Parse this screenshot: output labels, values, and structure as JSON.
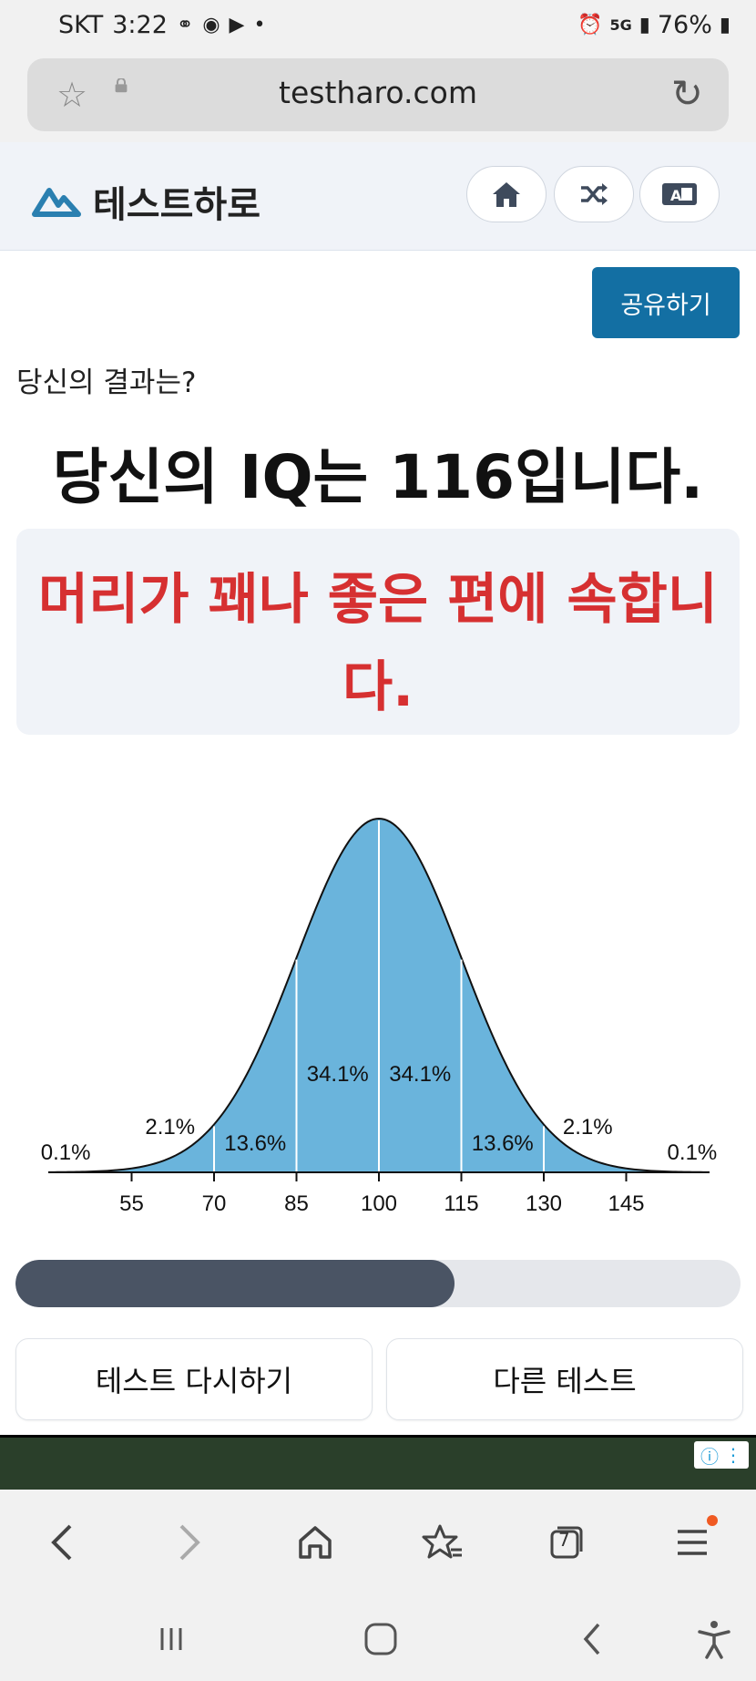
{
  "status_bar": {
    "carrier": "SKT",
    "time": "3:22",
    "network": "5G",
    "battery": "76%"
  },
  "browser": {
    "url": "testharo.com",
    "tabs_count": "7"
  },
  "site": {
    "brand": "테스트하로",
    "header_icons": [
      "home-icon",
      "shuffle-icon",
      "language-icon"
    ],
    "share_label": "공유하기"
  },
  "result": {
    "label": "당신의 결과는?",
    "title": "당신의 IQ는 116입니다.",
    "description": "머리가 꽤나 좋은 편에 속합니다."
  },
  "chart_data": {
    "type": "area",
    "x_ticks": [
      55,
      70,
      85,
      100,
      115,
      130,
      145
    ],
    "mean": 100,
    "sd": 15,
    "region_labels": [
      {
        "x": 43,
        "text": "0.1%"
      },
      {
        "x": 62,
        "text": "2.1%"
      },
      {
        "x": 77.5,
        "text": "13.6%"
      },
      {
        "x": 92.5,
        "text": "34.1%"
      },
      {
        "x": 107.5,
        "text": "34.1%"
      },
      {
        "x": 122.5,
        "text": "13.6%"
      },
      {
        "x": 138,
        "text": "2.1%"
      },
      {
        "x": 157,
        "text": "0.1%"
      }
    ],
    "fill_color": "#6ab4dc"
  },
  "progress": {
    "value_fraction": 0.605
  },
  "actions": {
    "retry_label": "테스트 다시하기",
    "other_label": "다른 테스트"
  },
  "colors": {
    "accent": "#136fa3",
    "result_red": "#d63031",
    "progress_fill": "#4a5464"
  }
}
